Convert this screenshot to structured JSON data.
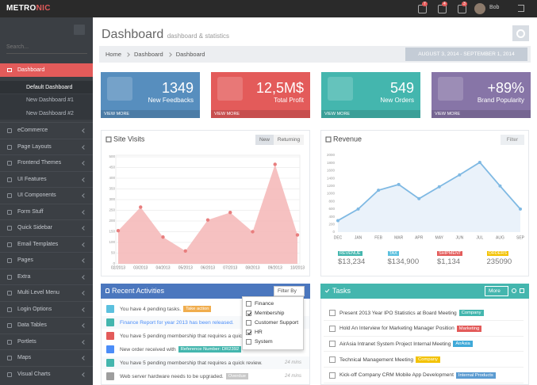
{
  "header": {
    "logo_main": "METRO",
    "logo_accent": "NIC",
    "badges": [
      "7",
      "4",
      "3"
    ],
    "user": "Bob"
  },
  "sidebar": {
    "search_placeholder": "Search...",
    "active": "Dashboard",
    "submenu": [
      "Default Dashboard",
      "New Dashboard #1",
      "New Dashboard #2"
    ],
    "items": [
      "eCommerce",
      "Page Layouts",
      "Frontend Themes",
      "UI Features",
      "UI Components",
      "Form Stuff",
      "Quick Sidebar",
      "Email Templates",
      "Pages",
      "Extra",
      "Multi Level Menu",
      "Login Options",
      "Data Tables",
      "Portlets",
      "Maps",
      "Visual Charts"
    ]
  },
  "page": {
    "title": "Dashboard",
    "subtitle": "dashboard & statistics",
    "breadcrumb": [
      "Home",
      "Dashboard",
      "Dashboard"
    ],
    "date_range": "AUGUST 3, 2014 - SEPTEMBER 1, 2014"
  },
  "tiles": [
    {
      "number": "1349",
      "label": "New Feedbacks",
      "link": "VIEW MORE",
      "color": "#578ebe"
    },
    {
      "number": "12,5M$",
      "label": "Total Profit",
      "link": "VIEW MORE",
      "color": "#e35b5a"
    },
    {
      "number": "549",
      "label": "New Orders",
      "link": "VIEW MORE",
      "color": "#44b6ae"
    },
    {
      "number": "+89%",
      "label": "Brand Popularity",
      "link": "VIEW MORE",
      "color": "#8775a7"
    }
  ],
  "chart_data": [
    {
      "type": "area",
      "title": "Site Visits",
      "color": "#f4b6b6",
      "point_color": "#e87e7e",
      "categories": [
        "02/2013",
        "03/2013",
        "04/2013",
        "05/2013",
        "06/2013",
        "07/2013",
        "08/2013",
        "09/2013",
        "10/2013"
      ],
      "values": [
        155,
        265,
        125,
        60,
        205,
        240,
        150,
        465,
        135
      ],
      "ylim": [
        0,
        500
      ],
      "yticks": [
        0,
        50,
        100,
        150,
        200,
        250,
        300,
        350,
        400,
        450,
        500
      ],
      "grid": true
    },
    {
      "type": "line",
      "title": "Revenue",
      "color": "#7fb9e3",
      "fill": "#eaf2fa",
      "categories": [
        "DEC",
        "JAN",
        "FEB",
        "MAR",
        "APR",
        "MAY",
        "JUN",
        "JUL",
        "AUG",
        "SEP"
      ],
      "values": [
        300,
        600,
        1090,
        1240,
        870,
        1180,
        1490,
        1815,
        1200,
        600
      ],
      "ylim": [
        0,
        2000
      ],
      "yticks": [
        0,
        200,
        400,
        600,
        800,
        1000,
        1200,
        1400,
        1600,
        1800,
        2000
      ],
      "grid": false
    }
  ],
  "site_visits_tabs": [
    "New",
    "Returning"
  ],
  "revenue_filter": "Filter",
  "revenue_summary": [
    {
      "label": "REVENUE",
      "value": "$13,234",
      "color": "#44b6ae"
    },
    {
      "label": "TAX",
      "value": "$134,900",
      "color": "#5bc0de"
    },
    {
      "label": "SHIPMENT",
      "value": "$1,134",
      "color": "#e35b5a"
    },
    {
      "label": "ORDERS",
      "value": "235090",
      "color": "#f3c200"
    }
  ],
  "activities": {
    "title": "Recent Activities",
    "filter": "Filter By",
    "filter_options": [
      {
        "label": "Finance",
        "checked": false
      },
      {
        "label": "Membership",
        "checked": true
      },
      {
        "label": "Customer Support",
        "checked": false
      },
      {
        "label": "HR",
        "checked": true
      },
      {
        "label": "System",
        "checked": false
      }
    ],
    "items": [
      {
        "text": "You have 4 pending tasks.",
        "tag": "Take action",
        "tag_color": "#f0ad4e",
        "icon_color": "#5bc0de"
      },
      {
        "text": "Finance Report for year 2013 has been released.",
        "icon_color": "#44b6ae",
        "text_color": "#4b8df8"
      },
      {
        "text": "You have 5 pending membership that requires a quick review.",
        "icon_color": "#e35b5a"
      },
      {
        "text": "New order received with",
        "tag": "Reference Number: DR2392",
        "tag_color": "#44b6ae",
        "icon_color": "#4b8df8"
      },
      {
        "text": "You have 5 pending membership that requires a quick review.",
        "time": "24 mins",
        "icon_color": "#44b6ae"
      },
      {
        "text": "Web server hardware needs to be upgraded.",
        "tag": "Overdue",
        "tag_color": "#c8c8c8",
        "time": "24 mins",
        "icon_color": "#9e9e9e"
      }
    ]
  },
  "tasks": {
    "title": "Tasks",
    "more": "More",
    "items": [
      {
        "text": "Present 2013 Year IPO Statistics at Board Meeting",
        "tag": "Company",
        "tag_color": "#44b6ae"
      },
      {
        "text": "Hold An Interview for Marketing Manager Position",
        "tag": "Marketing",
        "tag_color": "#e35b5a"
      },
      {
        "text": "AirAsia Intranet System Project Internal Meeting",
        "tag": "AirAsia",
        "tag_color": "#3fa9d8"
      },
      {
        "text": "Technical Management Meeting",
        "tag": "Company",
        "tag_color": "#f3c200"
      },
      {
        "text": "Kick-off Company CRM Mobile App Development",
        "tag": "Internal Products",
        "tag_color": "#5b9bd1"
      }
    ]
  }
}
